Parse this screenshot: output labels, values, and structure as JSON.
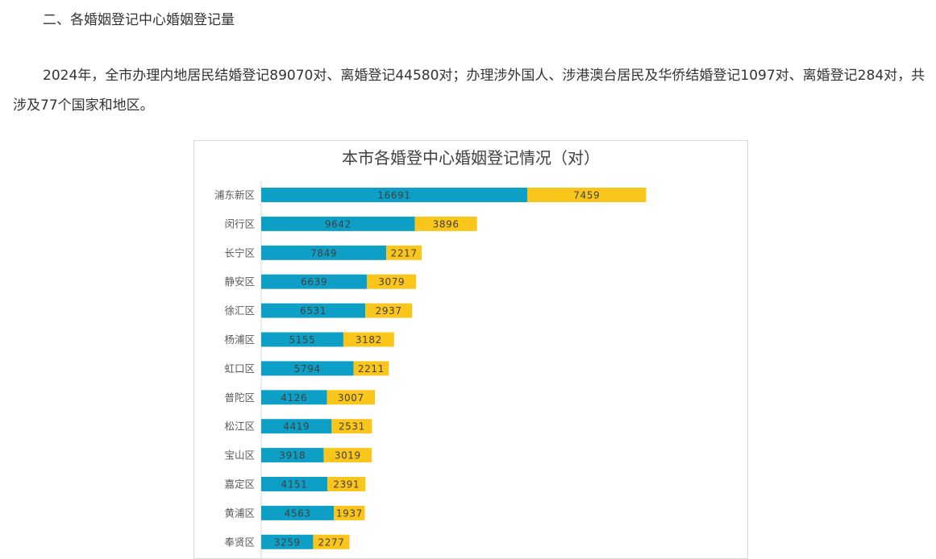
{
  "heading": "二、各婚姻登记中心婚姻登记量",
  "paragraph": "2024年，全市办理内地居民结婚登记89070对、离婚登记44580对；办理涉外国人、涉港澳台居民及华侨结婚登记1097对、离婚登记284对，共涉及77个国家和地区。",
  "colors": {
    "series_1": "#0e9fc7",
    "series_2": "#fbc61b"
  },
  "chart_data": {
    "type": "bar",
    "orientation": "horizontal",
    "stacked": true,
    "title": "本市各婚登中心婚姻登记情况（对）",
    "categories": [
      "浦东新区",
      "闵行区",
      "长宁区",
      "静安区",
      "徐汇区",
      "杨浦区",
      "虹口区",
      "普陀区",
      "松江区",
      "宝山区",
      "嘉定区",
      "黄浦区",
      "奉贤区"
    ],
    "series": [
      {
        "values": [
          16691,
          9642,
          7849,
          6639,
          6531,
          5155,
          5794,
          4126,
          4419,
          3918,
          4151,
          4563,
          3259
        ]
      },
      {
        "values": [
          7459,
          3896,
          2217,
          3079,
          2937,
          3182,
          2211,
          3007,
          2531,
          3019,
          2391,
          1937,
          2277
        ]
      }
    ],
    "data_labels": true,
    "xlim": [
      0,
      30000
    ],
    "grid": false,
    "legend": "none"
  }
}
